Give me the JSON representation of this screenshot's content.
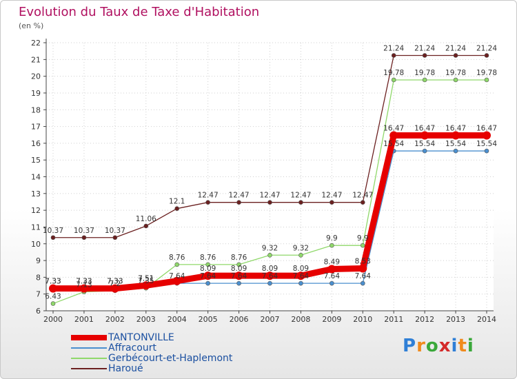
{
  "header": {
    "title": "Evolution du Taux de Taxe d'Habitation",
    "unit": "(en %)"
  },
  "logo": {
    "text": "Proxiti",
    "colors": [
      "#2f7fd6",
      "#f08a1c",
      "#3aa83a",
      "#d42a2a"
    ]
  },
  "chart_data": {
    "type": "line",
    "title": "Evolution du Taux de Taxe d'Habitation",
    "ylabel": "(en %)",
    "xlabel": "",
    "ylim": [
      6,
      22
    ],
    "yticks": [
      6,
      7,
      8,
      9,
      10,
      11,
      12,
      13,
      14,
      15,
      16,
      17,
      18,
      19,
      20,
      21,
      22
    ],
    "categories": [
      "2000",
      "2001",
      "2002",
      "2003",
      "2004",
      "2005",
      "2006",
      "2007",
      "2008",
      "2009",
      "2010",
      "2011",
      "2012",
      "2013",
      "2014"
    ],
    "grid": "dotted",
    "legend_position": "bottom-left",
    "series": [
      {
        "name": "TANTONVILLE",
        "color": "#e60000",
        "values": [
          7.33,
          7.33,
          7.33,
          7.51,
          7.78,
          8.09,
          8.09,
          8.09,
          8.09,
          8.49,
          8.53,
          16.47,
          16.47,
          16.47,
          16.47
        ],
        "labels": [
          "7.33",
          "7.33",
          "7.33",
          "7.51",
          "",
          "8.09",
          "8.09",
          "8.09",
          "8.09",
          "8.49",
          "8.53",
          "16.47",
          "16.47",
          "16.47",
          "16.47"
        ]
      },
      {
        "name": "Affracourt",
        "color": "#4a8fcf",
        "values": [
          7.33,
          7.33,
          7.33,
          7.51,
          7.64,
          7.64,
          7.64,
          7.64,
          7.64,
          7.64,
          7.64,
          15.54,
          15.54,
          15.54,
          15.54
        ],
        "labels": [
          "7.33",
          "7.33",
          "7.33",
          "7.51",
          "7.64",
          "7.64",
          "7.64",
          "7.64",
          "7.64",
          "7.64",
          "7.64",
          "15.54",
          "15.54",
          "15.54",
          "15.54"
        ]
      },
      {
        "name": "Gerbécourt-et-Haplemont",
        "color": "#8fd86a",
        "values": [
          6.43,
          7.13,
          7.2,
          7.35,
          8.76,
          8.76,
          8.76,
          9.32,
          9.32,
          9.9,
          9.9,
          19.78,
          19.78,
          19.78,
          19.78
        ],
        "labels": [
          "6.43",
          "7.13",
          "7.2",
          "7.35",
          "8.76",
          "8.76",
          "8.76",
          "9.32",
          "9.32",
          "9.9",
          "9.9",
          "19.78",
          "19.78",
          "19.78",
          "19.78"
        ]
      },
      {
        "name": "Haroué",
        "color": "#6b2020",
        "values": [
          10.37,
          10.37,
          10.37,
          11.06,
          12.1,
          12.47,
          12.47,
          12.47,
          12.47,
          12.47,
          12.47,
          21.24,
          21.24,
          21.24,
          21.24
        ],
        "labels": [
          "10.37",
          "10.37",
          "10.37",
          "11.06",
          "12.1",
          "12.47",
          "12.47",
          "12.47",
          "12.47",
          "12.47",
          "12.47",
          "21.24",
          "21.24",
          "21.24",
          "21.24"
        ]
      }
    ]
  },
  "legend": {
    "items": [
      {
        "label": "TANTONVILLE",
        "color": "#e60000"
      },
      {
        "label": "Affracourt",
        "color": "#4a8fcf"
      },
      {
        "label": "Gerbécourt-et-Haplemont",
        "color": "#8fd86a"
      },
      {
        "label": "Haroué",
        "color": "#6b2020"
      }
    ]
  }
}
